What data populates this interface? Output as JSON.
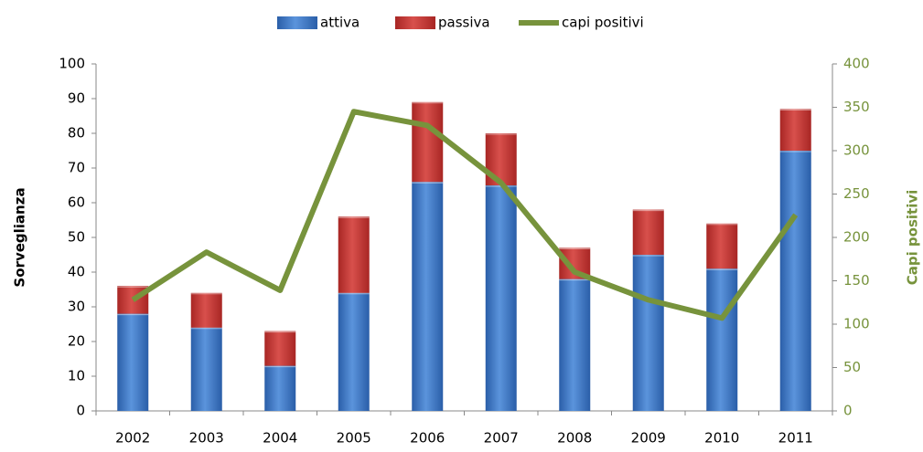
{
  "chart_data": {
    "type": "bar",
    "categories": [
      "2002",
      "2003",
      "2004",
      "2005",
      "2006",
      "2007",
      "2008",
      "2009",
      "2010",
      "2011"
    ],
    "series": [
      {
        "name": "attiva",
        "color": "#3a75c4",
        "values": [
          28,
          24,
          13,
          34,
          66,
          65,
          38,
          45,
          41,
          75
        ]
      },
      {
        "name": "passiva",
        "color": "#c0312f",
        "values": [
          8,
          10,
          10,
          22,
          23,
          15,
          9,
          13,
          13,
          12
        ]
      },
      {
        "name": "capi positivi",
        "color": "#77933c",
        "axis": "y2",
        "type": "line",
        "values": [
          128,
          183,
          139,
          345,
          329,
          263,
          160,
          128,
          107,
          226
        ]
      }
    ],
    "y_label": "Sorveglianza",
    "y2_label": "Capi positivi",
    "ylim": [
      0,
      100
    ],
    "yticks": [
      0,
      10,
      20,
      30,
      40,
      50,
      60,
      70,
      80,
      90,
      100
    ],
    "y2lim": [
      0,
      400
    ],
    "y2ticks": [
      0,
      50,
      100,
      150,
      200,
      250,
      300,
      350,
      400
    ],
    "stacked": true,
    "legend": "top"
  }
}
